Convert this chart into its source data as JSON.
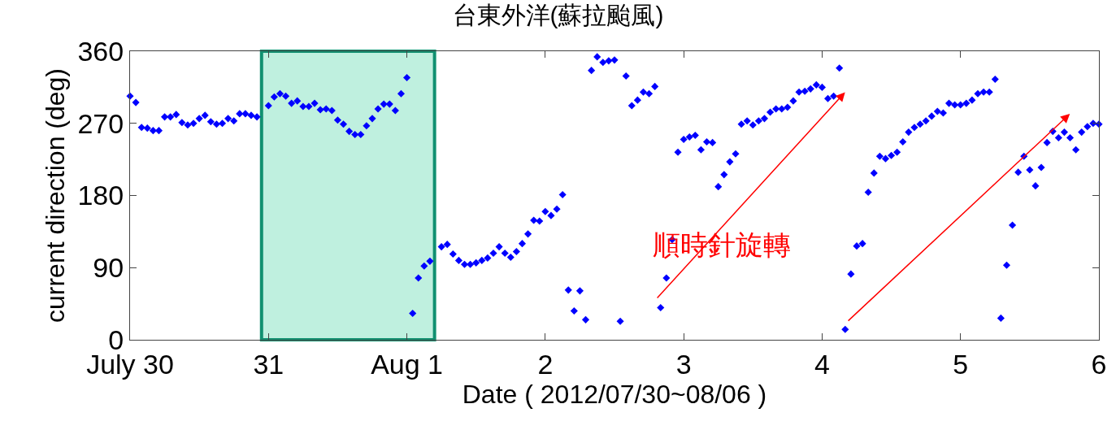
{
  "chart_data": {
    "type": "scatter",
    "title": "台東外洋(蘇拉颱風)",
    "xlabel": "Date ( 2012/07/30~08/06 )",
    "ylabel": "current direction (deg)",
    "x": [
      "2012-07-30T00:00",
      "2012-07-30T01:00",
      "2012-07-30T02:00",
      "2012-07-30T03:00",
      "2012-07-30T04:00",
      "2012-07-30T05:00",
      "2012-07-30T06:00",
      "2012-07-30T07:00",
      "2012-07-30T08:00",
      "2012-07-30T09:00",
      "2012-07-30T10:00",
      "2012-07-30T11:00",
      "2012-07-30T12:00",
      "2012-07-30T13:00",
      "2012-07-30T14:00",
      "2012-07-30T15:00",
      "2012-07-30T16:00",
      "2012-07-30T17:00",
      "2012-07-30T18:00",
      "2012-07-30T19:00",
      "2012-07-30T20:00",
      "2012-07-30T21:00",
      "2012-07-30T22:00",
      "2012-07-31T00:00",
      "2012-07-31T01:00",
      "2012-07-31T02:00",
      "2012-07-31T03:00",
      "2012-07-31T04:00",
      "2012-07-31T05:00",
      "2012-07-31T06:00",
      "2012-07-31T07:00",
      "2012-07-31T08:00",
      "2012-07-31T09:00",
      "2012-07-31T10:00",
      "2012-07-31T11:00",
      "2012-07-31T12:00",
      "2012-07-31T13:00",
      "2012-07-31T14:00",
      "2012-07-31T15:00",
      "2012-07-31T16:00",
      "2012-07-31T17:00",
      "2012-07-31T18:00",
      "2012-07-31T19:00",
      "2012-07-31T20:00",
      "2012-07-31T21:00",
      "2012-07-31T22:00",
      "2012-07-31T23:00",
      "2012-08-01T00:00",
      "2012-08-01T01:00",
      "2012-08-01T02:00",
      "2012-08-01T03:00",
      "2012-08-01T04:00",
      "2012-08-01T06:00",
      "2012-08-01T07:00",
      "2012-08-01T08:00",
      "2012-08-01T09:00",
      "2012-08-01T10:00",
      "2012-08-01T11:00",
      "2012-08-01T12:00",
      "2012-08-01T13:00",
      "2012-08-01T14:00",
      "2012-08-01T15:00",
      "2012-08-01T16:00",
      "2012-08-01T17:00",
      "2012-08-01T18:00",
      "2012-08-01T19:00",
      "2012-08-01T20:00",
      "2012-08-01T21:00",
      "2012-08-01T22:00",
      "2012-08-01T23:00",
      "2012-08-02T00:00",
      "2012-08-02T01:00",
      "2012-08-02T02:00",
      "2012-08-02T03:00",
      "2012-08-02T04:00",
      "2012-08-02T05:00",
      "2012-08-02T06:00",
      "2012-08-02T07:00",
      "2012-08-02T08:00",
      "2012-08-02T09:00",
      "2012-08-02T10:00",
      "2012-08-02T11:00",
      "2012-08-02T12:00",
      "2012-08-02T13:00",
      "2012-08-02T14:00",
      "2012-08-02T15:00",
      "2012-08-02T16:00",
      "2012-08-02T17:00",
      "2012-08-02T18:00",
      "2012-08-02T19:00",
      "2012-08-02T20:00",
      "2012-08-02T21:00",
      "2012-08-02T22:00",
      "2012-08-02T23:00",
      "2012-08-03T00:00",
      "2012-08-03T01:00",
      "2012-08-03T02:00",
      "2012-08-03T03:00",
      "2012-08-03T04:00",
      "2012-08-03T05:00",
      "2012-08-03T06:00",
      "2012-08-03T07:00",
      "2012-08-03T08:00",
      "2012-08-03T09:00",
      "2012-08-03T10:00",
      "2012-08-03T11:00",
      "2012-08-03T12:00",
      "2012-08-03T13:00",
      "2012-08-03T14:00",
      "2012-08-03T15:00",
      "2012-08-03T16:00",
      "2012-08-03T17:00",
      "2012-08-03T18:00",
      "2012-08-03T19:00",
      "2012-08-03T20:00",
      "2012-08-03T21:00",
      "2012-08-03T22:00",
      "2012-08-03T23:00",
      "2012-08-04T00:00",
      "2012-08-04T01:00",
      "2012-08-04T02:00",
      "2012-08-04T03:00",
      "2012-08-04T04:00",
      "2012-08-04T05:00",
      "2012-08-04T06:00",
      "2012-08-04T07:00",
      "2012-08-04T08:00",
      "2012-08-04T09:00",
      "2012-08-04T10:00",
      "2012-08-04T11:00",
      "2012-08-04T12:00",
      "2012-08-04T13:00",
      "2012-08-04T14:00",
      "2012-08-04T15:00",
      "2012-08-04T16:00",
      "2012-08-04T17:00",
      "2012-08-04T18:00",
      "2012-08-04T19:00",
      "2012-08-04T20:00",
      "2012-08-04T21:00",
      "2012-08-04T22:00",
      "2012-08-04T23:00",
      "2012-08-05T00:00",
      "2012-08-05T01:00",
      "2012-08-05T02:00",
      "2012-08-05T03:00",
      "2012-08-05T04:00",
      "2012-08-05T05:00",
      "2012-08-05T06:00",
      "2012-08-05T07:00",
      "2012-08-05T08:00",
      "2012-08-05T09:00",
      "2012-08-05T10:00",
      "2012-08-05T11:00",
      "2012-08-05T12:00",
      "2012-08-05T13:00",
      "2012-08-05T14:00",
      "2012-08-05T15:00",
      "2012-08-05T16:00",
      "2012-08-05T17:00",
      "2012-08-05T18:00",
      "2012-08-05T19:00",
      "2012-08-05T20:00",
      "2012-08-05T21:00",
      "2012-08-05T22:00",
      "2012-08-05T23:00",
      "2012-08-06T00:00"
    ],
    "values": [
      304,
      296,
      265,
      264,
      261,
      261,
      278,
      278,
      281,
      271,
      268,
      270,
      276,
      280,
      272,
      269,
      270,
      276,
      273,
      282,
      282,
      280,
      278,
      292,
      303,
      307,
      304,
      295,
      298,
      291,
      291,
      295,
      287,
      288,
      286,
      274,
      269,
      260,
      256,
      256,
      267,
      276,
      288,
      294,
      294,
      286,
      307,
      327,
      33,
      77,
      92,
      98,
      116,
      119,
      107,
      99,
      94,
      94,
      96,
      99,
      102,
      108,
      116,
      108,
      103,
      110,
      120,
      132,
      149,
      148,
      160,
      155,
      163,
      181,
      62,
      36,
      61,
      25,
      336,
      353,
      346,
      348,
      349,
      23,
      329,
      292,
      299,
      309,
      307,
      316,
      40,
      77,
      125,
      234,
      250,
      253,
      255,
      237,
      247,
      246,
      191,
      206,
      222,
      232,
      269,
      273,
      268,
      273,
      276,
      284,
      288,
      288,
      290,
      298,
      309,
      310,
      313,
      318,
      315,
      301,
      304,
      339,
      13,
      82,
      117,
      120,
      184,
      208,
      229,
      226,
      230,
      234,
      247,
      259,
      265,
      269,
      273,
      279,
      285,
      283,
      295,
      293,
      293,
      295,
      299,
      307,
      309,
      309,
      325,
      27,
      93,
      143,
      209,
      229,
      212,
      192,
      215,
      246,
      260,
      252,
      259,
      252,
      237,
      259,
      266,
      270,
      269
    ],
    "color": "#0000ff",
    "marker": "diamond",
    "xlim": [
      "2012-07-30",
      "2012-08-06"
    ],
    "xticks": [
      {
        "value": "2012-07-30",
        "label": "July 30"
      },
      {
        "value": "2012-07-31",
        "label": "31"
      },
      {
        "value": "2012-08-01",
        "label": "Aug 1"
      },
      {
        "value": "2012-08-02",
        "label": "2"
      },
      {
        "value": "2012-08-03",
        "label": "3"
      },
      {
        "value": "2012-08-04",
        "label": "4"
      },
      {
        "value": "2012-08-05",
        "label": "5"
      },
      {
        "value": "2012-08-06",
        "label": "6"
      }
    ],
    "ylim": [
      0,
      360
    ],
    "yticks": [
      0,
      90,
      180,
      270,
      360
    ],
    "bands": [
      {
        "axis": "x",
        "from": "2012-07-30T22:48",
        "to": "2012-08-01T04:48",
        "color": "#bff0df"
      }
    ],
    "annotations": [
      "順時針旋轉"
    ],
    "grid": false
  }
}
